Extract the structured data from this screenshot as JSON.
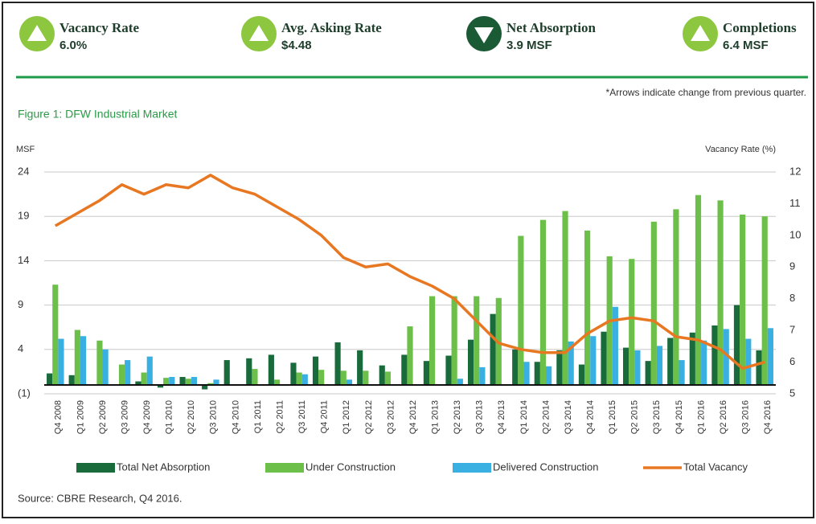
{
  "kpis": [
    {
      "label": "Vacancy Rate",
      "value": "6.0%",
      "direction": "up"
    },
    {
      "label": "Avg. Asking Rate",
      "value": "$4.48",
      "direction": "up"
    },
    {
      "label": "Net Absorption",
      "value": "3.9 MSF",
      "direction": "down"
    },
    {
      "label": "Completions",
      "value": "6.4 MSF",
      "direction": "up"
    }
  ],
  "note": "*Arrows indicate change from previous quarter.",
  "source": "Source: CBRE Research, Q4 2016.",
  "chart_data": {
    "type": "bar",
    "title": "Figure 1: DFW Industrial Market",
    "y_label": "MSF",
    "y2_label": "Vacancy Rate (%)",
    "categories": [
      "Q4 2008",
      "Q1 2009",
      "Q2 2009",
      "Q3 2009",
      "Q4 2009",
      "Q1 2010",
      "Q2 2010",
      "Q3 2010",
      "Q4 2010",
      "Q1 2011",
      "Q2 2011",
      "Q3 2011",
      "Q4 2011",
      "Q1 2012",
      "Q2 2012",
      "Q3 2012",
      "Q4 2012",
      "Q1 2013",
      "Q2 2013",
      "Q3 2013",
      "Q4 2013",
      "Q1 2014",
      "Q2 2014",
      "Q3 2014",
      "Q4 2014",
      "Q1 2015",
      "Q2 2015",
      "Q3 2015",
      "Q4 2015",
      "Q1 2016",
      "Q2 2016",
      "Q3 2016",
      "Q4 2016"
    ],
    "ylim": [
      -1,
      24
    ],
    "yticks": [
      {
        "value": -1,
        "label": "(1)"
      },
      4,
      9,
      14,
      19,
      24
    ],
    "y2lim": [
      5,
      12
    ],
    "y2ticks": [
      5,
      6,
      7,
      8,
      9,
      10,
      11,
      12
    ],
    "grid": true,
    "legend": "bottom",
    "series": [
      {
        "name": "Total Net Absorption",
        "color": "#1a6b3c",
        "type": "bar",
        "values": [
          1.3,
          1.1,
          0,
          0,
          0.4,
          -0.3,
          0.9,
          -0.5,
          2.8,
          3.0,
          3.4,
          2.5,
          3.2,
          4.8,
          3.9,
          2.2,
          3.4,
          2.7,
          3.3,
          5.1,
          8.0,
          4.0,
          2.6,
          3.9,
          2.3,
          6.0,
          4.2,
          2.7,
          5.3,
          5.9,
          6.7,
          9.0,
          3.9
        ]
      },
      {
        "name": "Under Construction",
        "color": "#6cc04a",
        "type": "bar",
        "values": [
          11.3,
          6.2,
          5.0,
          2.3,
          1.4,
          0.8,
          0.7,
          0.2,
          0,
          1.8,
          0.6,
          1.4,
          1.7,
          1.6,
          1.6,
          1.5,
          6.6,
          10.0,
          10.0,
          10.0,
          9.8,
          16.8,
          18.6,
          19.6,
          17.4,
          14.5,
          14.2,
          18.4,
          19.8,
          21.4,
          20.8,
          19.2,
          19.0
        ]
      },
      {
        "name": "Delivered Construction",
        "color": "#3ab0e2",
        "type": "bar",
        "values": [
          5.2,
          5.5,
          4.0,
          2.8,
          3.2,
          0.9,
          0.9,
          0.6,
          0,
          0,
          0,
          1.2,
          0,
          0.6,
          0,
          0,
          0,
          0,
          0.7,
          2.0,
          0,
          2.6,
          2.1,
          4.9,
          5.5,
          8.8,
          3.9,
          4.4,
          2.8,
          5.0,
          6.3,
          5.2,
          6.4
        ]
      },
      {
        "name": "Total Vacancy",
        "color": "#e87722",
        "type": "line",
        "axis": "y2",
        "values": [
          10.3,
          10.7,
          11.1,
          11.6,
          11.3,
          11.6,
          11.5,
          11.9,
          11.5,
          11.3,
          10.9,
          10.5,
          10.0,
          9.3,
          9.0,
          9.1,
          8.7,
          8.4,
          8.0,
          7.3,
          6.6,
          6.4,
          6.3,
          6.3,
          6.9,
          7.3,
          7.4,
          7.3,
          6.8,
          6.7,
          6.4,
          5.8,
          6.0
        ]
      }
    ]
  }
}
